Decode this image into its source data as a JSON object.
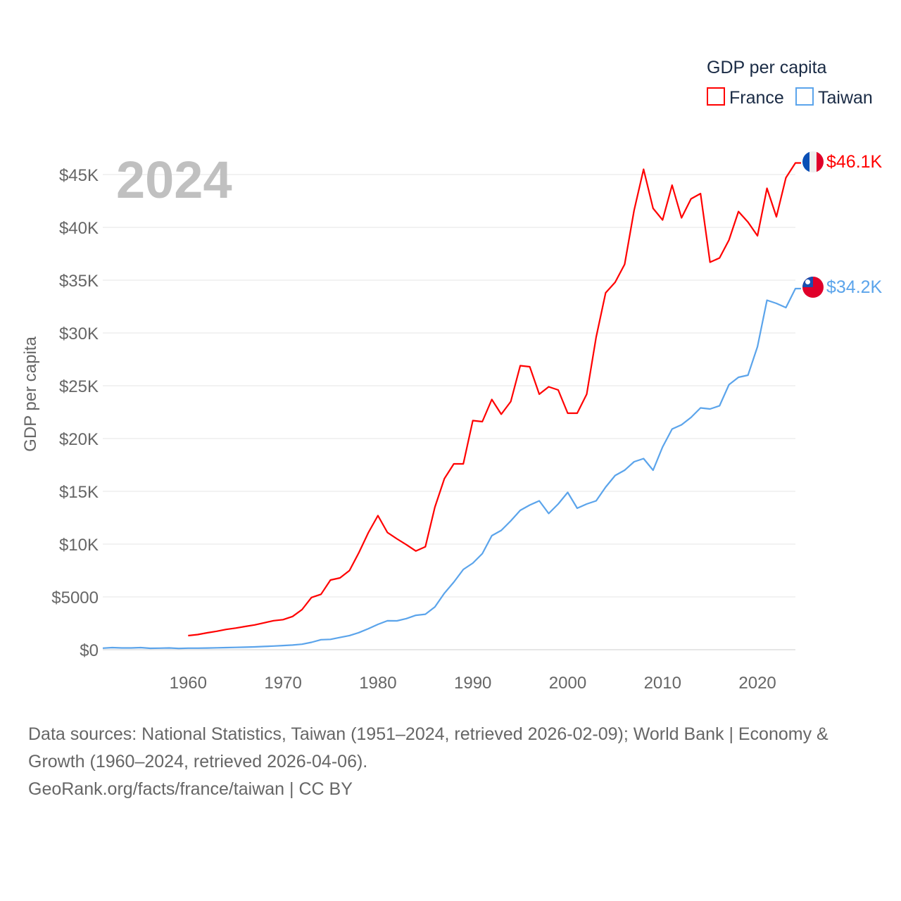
{
  "chart_data": {
    "type": "line",
    "title": "GDP per capita",
    "ylabel": "GDP per capita",
    "xlabel": "",
    "year_label": "2024",
    "xlim": [
      1951,
      2024
    ],
    "ylim": [
      0,
      45000
    ],
    "grid": true,
    "legend_position": "top-right",
    "x_ticks": [
      1960,
      1970,
      1980,
      1990,
      2000,
      2010,
      2020
    ],
    "x_tick_labels": [
      "1960",
      "1970",
      "1980",
      "1990",
      "2000",
      "2010",
      "2020"
    ],
    "y_ticks": [
      0,
      5000,
      10000,
      15000,
      20000,
      25000,
      30000,
      35000,
      40000,
      45000
    ],
    "y_tick_labels": [
      "$0",
      "$5000",
      "$10K",
      "$15K",
      "$20K",
      "$25K",
      "$30K",
      "$35K",
      "$40K",
      "$45K"
    ],
    "series": [
      {
        "name": "France",
        "color": "#ff0000",
        "end_label": "$46.1K",
        "flag": "france-flag",
        "start_year": 1960,
        "values": [
          1330,
          1430,
          1600,
          1750,
          1920,
          2050,
          2200,
          2350,
          2550,
          2750,
          2850,
          3150,
          3800,
          4950,
          5250,
          6600,
          6800,
          7500,
          9200,
          11100,
          12700,
          11100,
          10500,
          9950,
          9350,
          9750,
          13500,
          16200,
          17600,
          17600,
          21700,
          21600,
          23700,
          22300,
          23500,
          26900,
          26800,
          24200,
          24900,
          24600,
          22400,
          22400,
          24200,
          29600,
          33800,
          34800,
          36500,
          41600,
          45500,
          41800,
          40700,
          44000,
          40900,
          42700,
          43200,
          36700,
          37100,
          38800,
          41500,
          40500,
          39200,
          43700,
          41000,
          44700,
          46100
        ]
      },
      {
        "name": "Taiwan",
        "color": "#5ba4eb",
        "end_label": "$34.2K",
        "flag": "taiwan-flag",
        "start_year": 1951,
        "values": [
          150,
          200,
          170,
          170,
          200,
          130,
          150,
          170,
          120,
          150,
          150,
          160,
          180,
          200,
          220,
          240,
          270,
          310,
          350,
          390,
          440,
          520,
          700,
          950,
          980,
          1160,
          1340,
          1620,
          1990,
          2400,
          2740,
          2730,
          2950,
          3260,
          3360,
          4050,
          5350,
          6400,
          7600,
          8200,
          9100,
          10800,
          11300,
          12200,
          13200,
          13700,
          14100,
          12900,
          13800,
          14900,
          13400,
          13800,
          14100,
          15400,
          16500,
          17000,
          17800,
          18100,
          17000,
          19200,
          20900,
          21300,
          22000,
          22900,
          22800,
          23100,
          25100,
          25800,
          26000,
          28700,
          33100,
          32800,
          32400,
          34200
        ]
      }
    ]
  },
  "source": {
    "line1": "Data sources: National Statistics, Taiwan (1951–2024, retrieved 2026-02-09); World Bank | Economy & Growth (1960–2024, retrieved 2026-04-06).",
    "line2": "GeoRank.org/facts/france/taiwan | CC BY"
  }
}
